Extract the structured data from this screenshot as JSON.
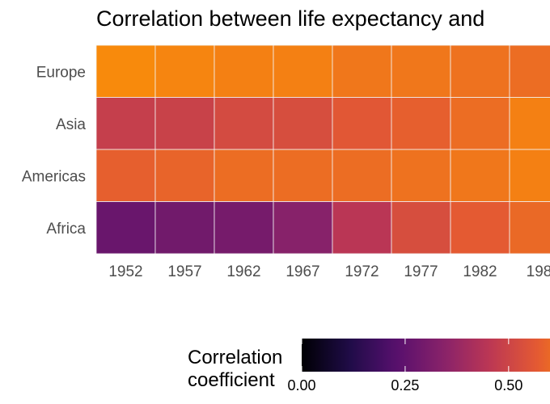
{
  "chart_data": {
    "type": "heatmap",
    "title": "Correlation between life expectancy and",
    "x": [
      "1952",
      "1957",
      "1962",
      "1967",
      "1972",
      "1977",
      "1982",
      "198"
    ],
    "y": [
      "Europe",
      "Asia",
      "Americas",
      "Africa"
    ],
    "values": [
      [
        0.67,
        0.66,
        0.65,
        0.65,
        0.63,
        0.63,
        0.62,
        0.61
      ],
      [
        0.48,
        0.49,
        0.52,
        0.53,
        0.56,
        0.58,
        0.61,
        0.65
      ],
      [
        0.58,
        0.59,
        0.61,
        0.61,
        0.61,
        0.62,
        0.63,
        0.65
      ],
      [
        0.27,
        0.29,
        0.3,
        0.34,
        0.45,
        0.53,
        0.57,
        0.6
      ]
    ],
    "colorbar": {
      "title_lines": [
        "Correlation",
        "coefficient"
      ],
      "ticks": [
        "0.00",
        "0.25",
        "0.50"
      ],
      "tick_values": [
        0,
        0.25,
        0.5
      ],
      "range": [
        0,
        0.6
      ],
      "colormap": "inferno"
    },
    "grid": false
  }
}
